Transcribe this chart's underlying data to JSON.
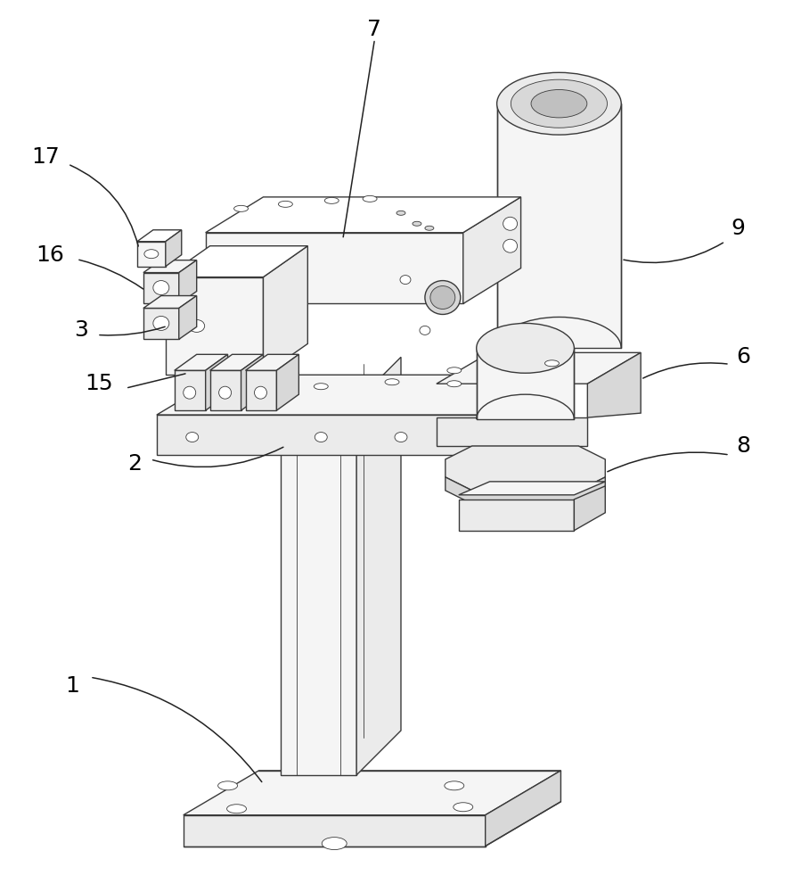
{
  "bg_color": "#ffffff",
  "lc": "#3a3a3a",
  "lw": 1.0,
  "lw_thin": 0.6,
  "fill_white": "#ffffff",
  "fill_vlight": "#f5f5f5",
  "fill_light": "#ebebeb",
  "fill_mid": "#d8d8d8",
  "fill_dark": "#c0c0c0",
  "label_fs": 18,
  "leader_lw": 1.1,
  "leader_color": "#222222"
}
